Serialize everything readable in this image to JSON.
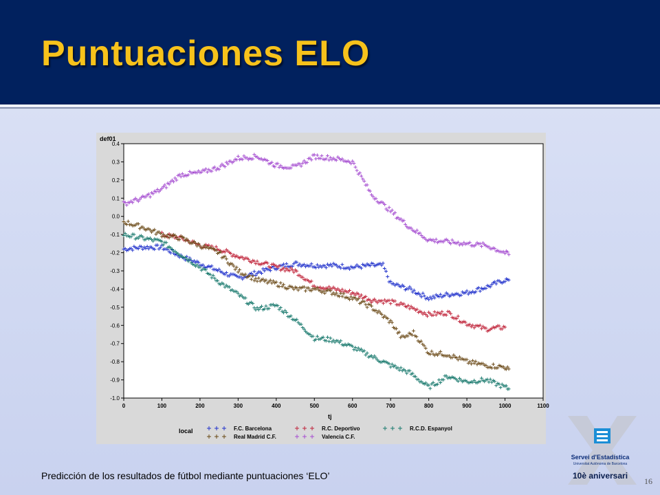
{
  "slide": {
    "title": "Puntuaciones ELO",
    "footer": "Predicción de los resultados de fútbol mediante puntuaciones ‘ELO’",
    "page_number": "16"
  },
  "logo": {
    "name": "Servei d'Estadística",
    "subtitle": "Universitat Autònoma de Barcelona",
    "anniversary": "10è aniversari"
  },
  "colors": {
    "header_bg": "#01215e",
    "title": "#f7c21b",
    "barcelona": "#2233cc",
    "deportivo": "#c0243a",
    "espanyol": "#1a7a6e",
    "real_madrid": "#6b4a18",
    "valencia": "#a64fd1"
  },
  "chart_data": {
    "type": "scatter",
    "ylabel": "def01",
    "xlabel": "tj",
    "xlim": [
      0,
      1100
    ],
    "ylim": [
      -1.0,
      0.4
    ],
    "xticks": [
      "0",
      "100",
      "200",
      "300",
      "400",
      "500",
      "600",
      "700",
      "800",
      "900",
      "1000",
      "1100"
    ],
    "yticks": [
      "0.4",
      "0.3",
      "0.2",
      "0.1",
      "0.0",
      "-0.1",
      "-0.2",
      "-0.3",
      "-0.4",
      "-0.5",
      "-0.6",
      "-0.7",
      "-0.8",
      "-0.9",
      "-1.0"
    ],
    "grid": false,
    "marker": "plus",
    "legend_title": "local",
    "legend_placement": "bottom",
    "series": [
      {
        "name": "F.C. Barcelona",
        "color": "#2233cc",
        "x": [
          0,
          50,
          100,
          150,
          200,
          250,
          300,
          350,
          400,
          450,
          500,
          550,
          600,
          650,
          680,
          700,
          750,
          800,
          850,
          900,
          950,
          1000,
          1010
        ],
        "y": [
          -0.18,
          -0.17,
          -0.17,
          -0.22,
          -0.26,
          -0.3,
          -0.34,
          -0.31,
          -0.28,
          -0.26,
          -0.27,
          -0.27,
          -0.28,
          -0.27,
          -0.27,
          -0.37,
          -0.4,
          -0.45,
          -0.43,
          -0.42,
          -0.39,
          -0.35,
          -0.35
        ]
      },
      {
        "name": "R.C. Deportivo",
        "color": "#c0243a",
        "x": [
          100,
          150,
          200,
          250,
          300,
          350,
          400,
          450,
          500,
          550,
          600,
          650,
          700,
          750,
          800,
          850,
          900,
          950,
          1000
        ],
        "y": [
          -0.1,
          -0.12,
          -0.16,
          -0.18,
          -0.22,
          -0.25,
          -0.28,
          -0.3,
          -0.38,
          -0.4,
          -0.42,
          -0.46,
          -0.47,
          -0.5,
          -0.54,
          -0.53,
          -0.59,
          -0.62,
          -0.61
        ]
      },
      {
        "name": "R.C.D. Espanyol",
        "color": "#1a7a6e",
        "x": [
          0,
          50,
          100,
          150,
          200,
          250,
          300,
          350,
          400,
          450,
          500,
          550,
          600,
          650,
          700,
          750,
          800,
          850,
          900,
          950,
          1000,
          1010
        ],
        "y": [
          -0.1,
          -0.12,
          -0.14,
          -0.21,
          -0.28,
          -0.36,
          -0.43,
          -0.51,
          -0.49,
          -0.57,
          -0.67,
          -0.68,
          -0.72,
          -0.77,
          -0.82,
          -0.86,
          -0.94,
          -0.88,
          -0.91,
          -0.9,
          -0.94,
          -0.95
        ]
      },
      {
        "name": "Real Madrid C.F.",
        "color": "#6b4a18",
        "x": [
          0,
          50,
          100,
          150,
          200,
          250,
          300,
          350,
          400,
          450,
          500,
          550,
          600,
          650,
          700,
          730,
          760,
          800,
          850,
          900,
          950,
          1000,
          1010
        ],
        "y": [
          -0.03,
          -0.06,
          -0.1,
          -0.12,
          -0.16,
          -0.2,
          -0.3,
          -0.35,
          -0.37,
          -0.4,
          -0.4,
          -0.42,
          -0.45,
          -0.5,
          -0.58,
          -0.67,
          -0.64,
          -0.75,
          -0.76,
          -0.8,
          -0.82,
          -0.83,
          -0.84
        ]
      },
      {
        "name": "Valencia C.F.",
        "color": "#a64fd1",
        "x": [
          0,
          50,
          100,
          150,
          200,
          250,
          300,
          350,
          400,
          450,
          500,
          550,
          600,
          650,
          700,
          750,
          800,
          850,
          900,
          950,
          1000,
          1010
        ],
        "y": [
          0.07,
          0.1,
          0.15,
          0.23,
          0.24,
          0.27,
          0.32,
          0.33,
          0.28,
          0.27,
          0.33,
          0.32,
          0.3,
          0.12,
          0.03,
          -0.06,
          -0.13,
          -0.14,
          -0.15,
          -0.16,
          -0.2,
          -0.21
        ]
      }
    ]
  }
}
